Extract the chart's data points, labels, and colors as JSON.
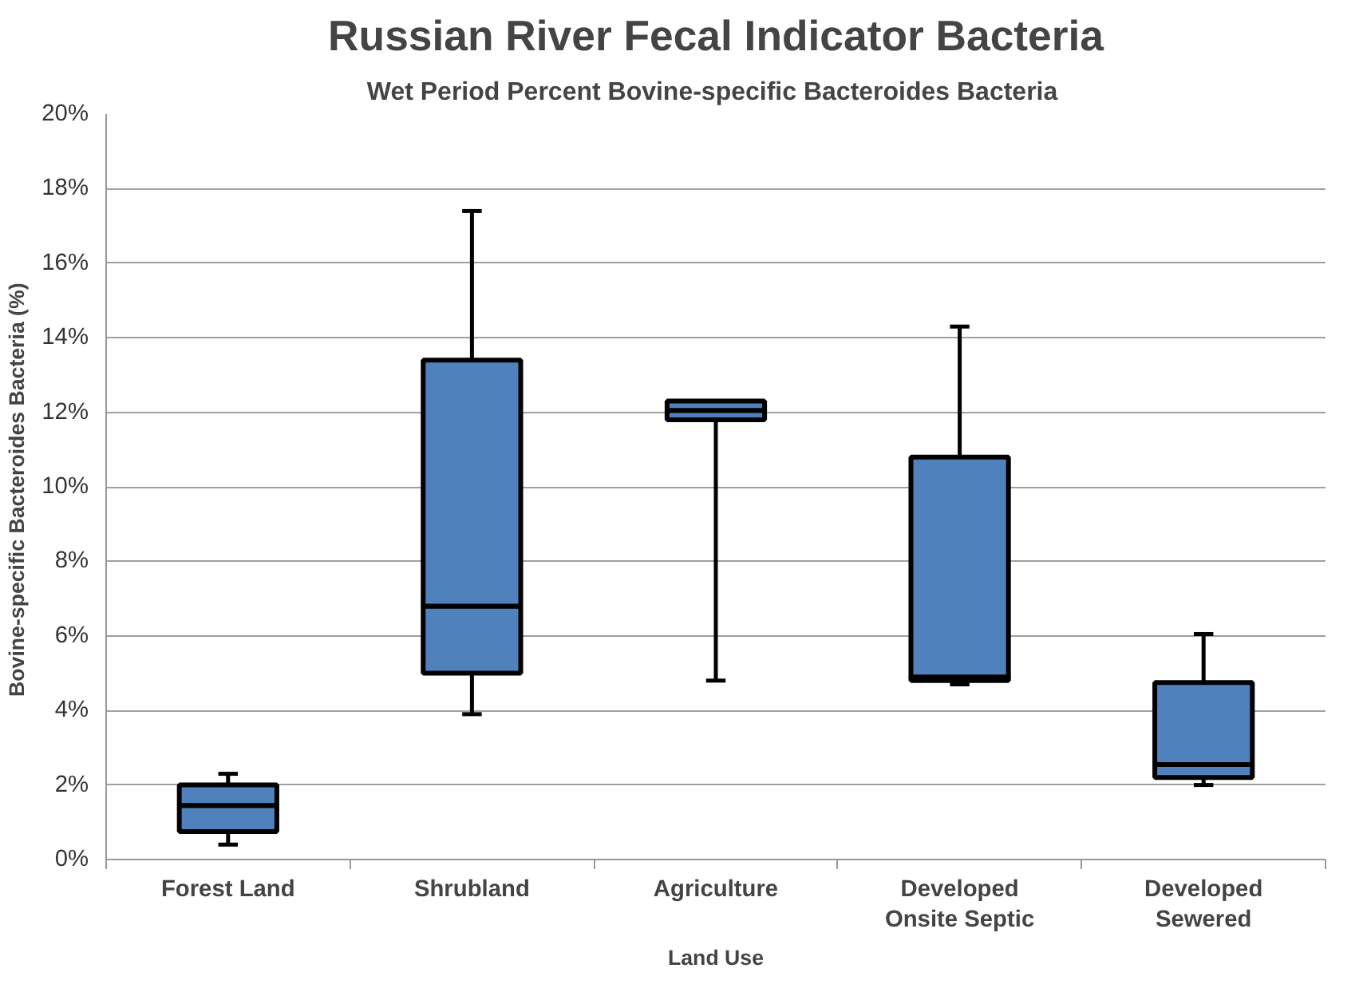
{
  "chart_data": {
    "type": "box",
    "title": "Russian River Fecal Indicator Bacteria",
    "subtitle": "Wet Period  Percent Bovine-specific Bacteroides Bacteria",
    "xlabel": "Land Use",
    "ylabel": "Bovine-specific Bacteroides Bacteria  (%)",
    "categories": [
      "Forest Land",
      "Shrubland",
      "Agriculture",
      "Developed\nOnsite Septic",
      "Developed\nSewered"
    ],
    "color": "#4f81bd",
    "boxes": [
      {
        "low": 0.4,
        "q1": 0.75,
        "median": 1.45,
        "q3": 2.0,
        "high": 2.3
      },
      {
        "low": 3.9,
        "q1": 5.0,
        "median": 6.8,
        "q3": 13.4,
        "high": 17.4
      },
      {
        "low": 4.8,
        "q1": 11.8,
        "median": 12.05,
        "q3": 12.3,
        "high": 12.3
      },
      {
        "low": 4.7,
        "q1": 4.8,
        "median": 4.9,
        "q3": 10.8,
        "high": 14.3
      },
      {
        "low": 2.0,
        "q1": 2.2,
        "median": 2.55,
        "q3": 4.75,
        "high": 6.05
      }
    ],
    "ylim": [
      0,
      20
    ],
    "yticks": [
      {
        "value": 0,
        "label": "0%"
      },
      {
        "value": 2,
        "label": "2%"
      },
      {
        "value": 4,
        "label": "4%"
      },
      {
        "value": 6,
        "label": "6%"
      },
      {
        "value": 8,
        "label": "8%"
      },
      {
        "value": 10,
        "label": "10%"
      },
      {
        "value": 12,
        "label": "12%"
      },
      {
        "value": 14,
        "label": "14%"
      },
      {
        "value": 16,
        "label": "16%"
      },
      {
        "value": 18,
        "label": "18%"
      },
      {
        "value": 20,
        "label": "20%"
      }
    ],
    "grid": "y"
  }
}
